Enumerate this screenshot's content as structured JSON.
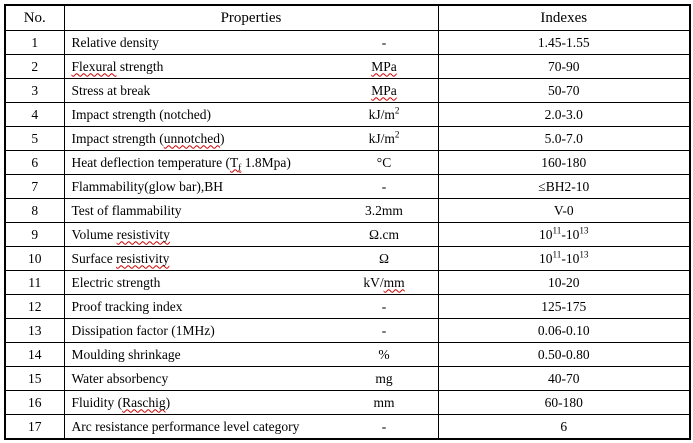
{
  "colors": {
    "background": "#ffffff",
    "text": "#000000",
    "border": "#000000",
    "spellcheck_underline": "#cc0000"
  },
  "table": {
    "columns": [
      {
        "key": "no",
        "label": "No."
      },
      {
        "key": "properties",
        "label": "Properties"
      },
      {
        "key": "indexes",
        "label": "Indexes"
      }
    ],
    "rows": [
      {
        "no": "1",
        "property": "Relative density",
        "unit": "-",
        "index": "1.45-1.55"
      },
      {
        "no": "2",
        "property": "Flexural strength",
        "property_html": "<span class=\"sq\">Flexural</span> strength",
        "unit": "MPa",
        "unit_html": "<span class=\"sq\">MPa</span>",
        "index": "70-90"
      },
      {
        "no": "3",
        "property": "Stress at break",
        "unit": "MPa",
        "unit_html": "<span class=\"sq\">MPa</span>",
        "index": "50-70"
      },
      {
        "no": "4",
        "property": "Impact strength (notched)",
        "unit": "kJ/m²",
        "unit_html": "kJ/m<sup>2</sup>",
        "index": "2.0-3.0"
      },
      {
        "no": "5",
        "property": "Impact strength (unnotched)",
        "property_html": "Impact strength (<span class=\"sq\">unnotched</span>)",
        "unit": "kJ/m²",
        "unit_html": "kJ/m<sup>2</sup>",
        "index": "5.0-7.0"
      },
      {
        "no": "6",
        "property": "Heat deflection temperature (Tf 1.8Mpa)",
        "property_html": "Heat deflection temperature (<span class=\"sq\">T<sub>f</sub></span> 1.8Mpa)",
        "unit": "°C",
        "index": "160-180"
      },
      {
        "no": "7",
        "property": "Flammability(glow bar),BH",
        "unit": "-",
        "index": "≤BH2-10"
      },
      {
        "no": "8",
        "property": "Test of flammability",
        "unit": "3.2mm",
        "index": "V-0"
      },
      {
        "no": "9",
        "property": "Volume resistivity",
        "property_html": "Volume <span class=\"sq\">resistivity</span>",
        "unit": "Ω.cm",
        "index": "10¹¹-10¹³",
        "index_html": "10<sup>11</sup>-10<sup>13</sup>"
      },
      {
        "no": "10",
        "property": "Surface resistivity",
        "property_html": "Surface <span class=\"sq\">resistivity</span>",
        "unit": "Ω",
        "index": "10¹¹-10¹³",
        "index_html": "10<sup>11</sup>-10<sup>13</sup>"
      },
      {
        "no": "11",
        "property": "Electric strength",
        "unit": "kV/mm",
        "unit_html": "kV/<span class=\"sq\">mm</span>",
        "index": "10-20"
      },
      {
        "no": "12",
        "property": "Proof tracking index",
        "unit": "-",
        "index": "125-175"
      },
      {
        "no": "13",
        "property": "Dissipation factor (1MHz)",
        "unit": "-",
        "index": "0.06-0.10"
      },
      {
        "no": "14",
        "property": "Moulding shrinkage",
        "unit": "%",
        "index": "0.50-0.80"
      },
      {
        "no": "15",
        "property": "Water absorbency",
        "unit": "mg",
        "index": "40-70"
      },
      {
        "no": "16",
        "property": "Fluidity (Raschig)",
        "property_html": "Fluidity (<span class=\"sq\">Raschig</span>)",
        "unit": "mm",
        "index": "60-180"
      },
      {
        "no": "17",
        "property": "Arc resistance performance level category",
        "unit": "-",
        "index": "6"
      }
    ]
  }
}
